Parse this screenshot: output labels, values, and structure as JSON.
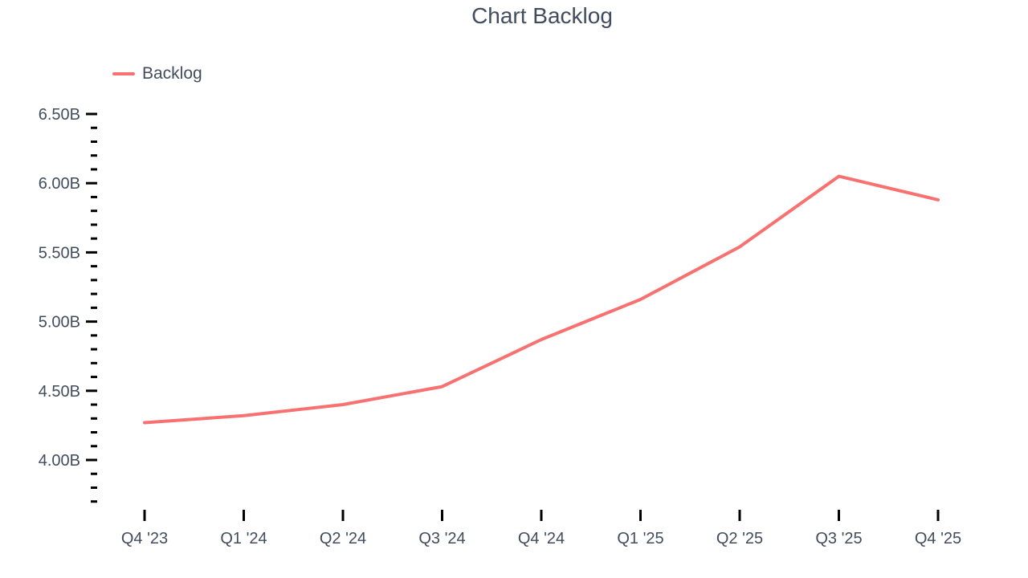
{
  "chart_data": {
    "type": "line",
    "title": "Chart Backlog",
    "categories": [
      "Q4 '23",
      "Q1 '24",
      "Q2 '24",
      "Q3 '24",
      "Q4 '24",
      "Q1 '25",
      "Q2 '25",
      "Q3 '25",
      "Q4 '25"
    ],
    "series": [
      {
        "name": "Backlog",
        "color": "#F87171",
        "values": [
          4.27,
          4.32,
          4.4,
          4.53,
          4.87,
          5.16,
          5.54,
          6.05,
          5.88
        ]
      }
    ],
    "xlabel": "",
    "ylabel": "",
    "y_axis": {
      "unit": "B",
      "min": 3.7,
      "max": 6.5,
      "major_tick_values": [
        6.5,
        6.0,
        5.5,
        5.0,
        4.5,
        4.0
      ],
      "major_tick_labels": [
        "6.50B",
        "6.00B",
        "5.50B",
        "5.00B",
        "4.50B",
        "4.00B"
      ],
      "minor_tick_step": 0.1
    },
    "legend_position": "top-left",
    "grid": false,
    "colors": {
      "text": "#414D5D",
      "tick": "#000000",
      "background": "#FFFFFF"
    }
  }
}
